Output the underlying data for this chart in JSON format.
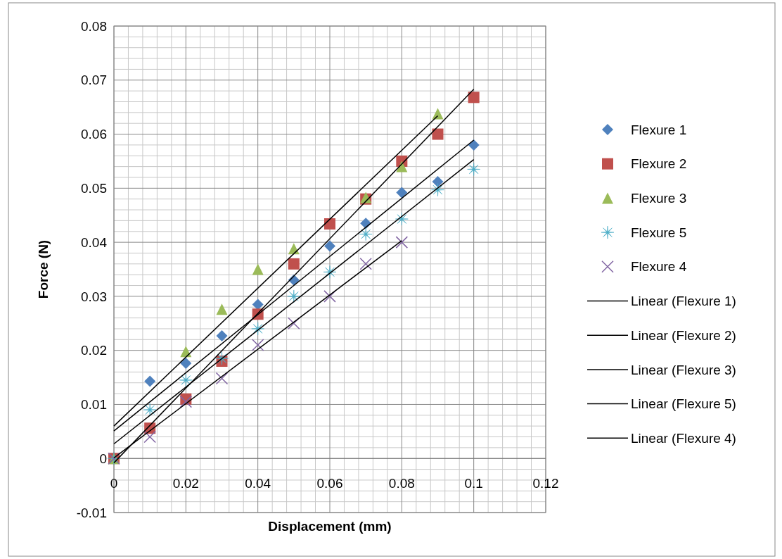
{
  "chart_data": {
    "type": "scatter",
    "xlabel": "Displacement (mm)",
    "ylabel": "Force (N)",
    "x": [
      0,
      0.01,
      0.02,
      0.03,
      0.04,
      0.05,
      0.06,
      0.07,
      0.08,
      0.09,
      0.1
    ],
    "series": [
      {
        "name": "Flexure 1",
        "color": "#4f81bd",
        "marker": "diamond",
        "values": [
          null,
          0.0143,
          0.0176,
          0.0227,
          0.0285,
          0.033,
          0.0393,
          0.0435,
          0.0492,
          0.0512,
          0.058
        ]
      },
      {
        "name": "Flexure 2",
        "color": "#c0504d",
        "marker": "square",
        "values": [
          0,
          0.0056,
          0.011,
          0.018,
          0.0267,
          0.036,
          0.0434,
          0.048,
          0.055,
          0.06,
          0.0668
        ]
      },
      {
        "name": "Flexure 3",
        "color": "#9bbb59",
        "marker": "triangle",
        "x": [
          0,
          0.02,
          0.03,
          0.04,
          0.05,
          0.07,
          0.08,
          0.09
        ],
        "values": [
          0,
          0.0198,
          0.0276,
          0.035,
          0.0388,
          0.0483,
          0.054,
          0.0638
        ]
      },
      {
        "name": "Flexure 5",
        "color": "#4bacc6",
        "marker": "star",
        "values": [
          0,
          0.009,
          0.0145,
          0.0185,
          0.024,
          0.03,
          0.0345,
          0.0415,
          0.0443,
          0.0497,
          0.0535
        ]
      },
      {
        "name": "Flexure 4",
        "color": "#8064a2",
        "marker": "cross",
        "x": [
          0,
          0.01,
          0.02,
          0.03,
          0.04,
          0.05,
          0.06,
          0.07,
          0.08
        ],
        "values": [
          0,
          0.004,
          0.0105,
          0.0148,
          0.021,
          0.025,
          0.03,
          0.036,
          0.04
        ]
      },
      {
        "name": "Linear (Flexure 1)",
        "type": "line",
        "color": "#000000",
        "x": [
          0,
          0.1
        ],
        "values": [
          0.0051,
          0.0589
        ]
      },
      {
        "name": "Linear (Flexure 2)",
        "type": "line",
        "color": "#000000",
        "x": [
          0,
          0.1
        ],
        "values": [
          -0.0008,
          0.0683
        ]
      },
      {
        "name": "Linear (Flexure 3)",
        "type": "line",
        "color": "#000000",
        "x": [
          0,
          0.09
        ],
        "values": [
          0.006,
          0.0634
        ]
      },
      {
        "name": "Linear (Flexure 5)",
        "type": "line",
        "color": "#000000",
        "x": [
          0,
          0.1
        ],
        "values": [
          0.0027,
          0.0553
        ]
      },
      {
        "name": "Linear (Flexure 4)",
        "type": "line",
        "color": "#000000",
        "x": [
          0,
          0.08
        ],
        "values": [
          0.0001,
          0.0403
        ]
      }
    ],
    "xlim": [
      0,
      0.12
    ],
    "xticks": [
      0,
      0.02,
      0.04,
      0.06,
      0.08,
      0.1,
      0.12
    ],
    "ylim": [
      -0.01,
      0.08
    ],
    "yticks": [
      -0.01,
      0,
      0.01,
      0.02,
      0.03,
      0.04,
      0.05,
      0.06,
      0.07,
      0.08
    ],
    "grid": true,
    "legend": "right"
  }
}
